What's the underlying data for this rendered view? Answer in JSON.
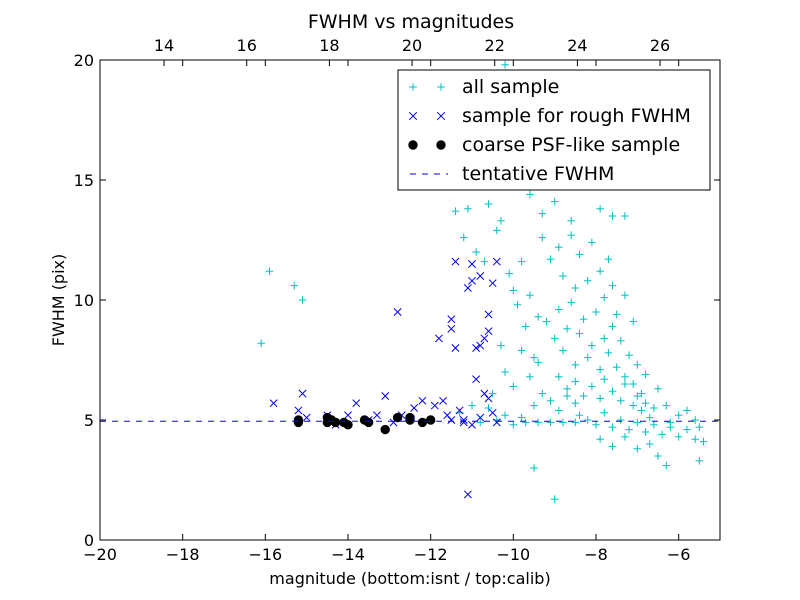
{
  "chart_data": {
    "type": "scatter",
    "title": "FWHM vs magnitudes",
    "xlabel": "magnitude (bottom:isnt / top:calib)",
    "ylabel": "FWHM (pix)",
    "xlim": [
      -20,
      -5
    ],
    "ylim": [
      0,
      20
    ],
    "x_ticks": [
      -20,
      -18,
      -16,
      -14,
      -12,
      -10,
      -8,
      -6
    ],
    "x_tick_labels": [
      "−20",
      "−18",
      "−16",
      "−14",
      "−12",
      "−10",
      "−8",
      "−6"
    ],
    "y_ticks": [
      0,
      5,
      10,
      15,
      20
    ],
    "y_tick_labels": [
      "0",
      "5",
      "10",
      "15",
      "20"
    ],
    "top_axis": {
      "xlim": [
        12.45,
        27.45
      ],
      "ticks": [
        14,
        16,
        18,
        20,
        22,
        24,
        26
      ],
      "tick_labels": [
        "14",
        "16",
        "18",
        "20",
        "22",
        "24",
        "26"
      ]
    },
    "grid": false,
    "legend_position": "top-right",
    "series": [
      {
        "name": "all sample",
        "marker": "plus",
        "color": "#00bfbf",
        "points": [
          [
            -16.1,
            8.2
          ],
          [
            -15.9,
            11.2
          ],
          [
            -15.3,
            10.6
          ],
          [
            -15.1,
            10.0
          ],
          [
            -11.4,
            13.7
          ],
          [
            -11.1,
            13.8
          ],
          [
            -11.2,
            12.6
          ],
          [
            -10.9,
            12.0
          ],
          [
            -10.7,
            11.6
          ],
          [
            -10.6,
            14.0
          ],
          [
            -10.4,
            12.9
          ],
          [
            -10.3,
            13.3
          ],
          [
            -11.3,
            5.3
          ],
          [
            -11.0,
            5.6
          ],
          [
            -10.8,
            4.9
          ],
          [
            -10.6,
            5.5
          ],
          [
            -10.4,
            5.0
          ],
          [
            -10.2,
            5.2
          ],
          [
            -10.0,
            4.8
          ],
          [
            -9.8,
            5.1
          ],
          [
            -10.1,
            11.1
          ],
          [
            -10.0,
            10.4
          ],
          [
            -9.9,
            9.8
          ],
          [
            -9.8,
            11.6
          ],
          [
            -9.7,
            8.9
          ],
          [
            -9.6,
            10.2
          ],
          [
            -9.5,
            7.6
          ],
          [
            -9.4,
            9.3
          ],
          [
            -10.2,
            19.8
          ],
          [
            -9.9,
            15.6
          ],
          [
            -9.6,
            14.4
          ],
          [
            -9.3,
            13.6
          ],
          [
            -9.0,
            14.1
          ],
          [
            -8.7,
            15.3
          ],
          [
            -8.4,
            16.5
          ],
          [
            -8.6,
            13.3
          ],
          [
            -8.3,
            14.8
          ],
          [
            -8.1,
            17.3
          ],
          [
            -7.9,
            13.8
          ],
          [
            -8.0,
            16.3
          ],
          [
            -7.6,
            13.5
          ],
          [
            -7.3,
            13.5
          ],
          [
            -9.3,
            12.6
          ],
          [
            -9.1,
            11.7
          ],
          [
            -8.9,
            12.2
          ],
          [
            -8.8,
            11.0
          ],
          [
            -8.6,
            12.7
          ],
          [
            -8.5,
            10.5
          ],
          [
            -8.4,
            11.9
          ],
          [
            -8.2,
            10.8
          ],
          [
            -8.1,
            12.4
          ],
          [
            -7.9,
            11.2
          ],
          [
            -7.8,
            10.1
          ],
          [
            -7.7,
            11.7
          ],
          [
            -7.6,
            10.6
          ],
          [
            -7.5,
            9.4
          ],
          [
            -7.3,
            10.2
          ],
          [
            -7.1,
            9.1
          ],
          [
            -9.2,
            9.1
          ],
          [
            -9.0,
            8.4
          ],
          [
            -8.9,
            9.6
          ],
          [
            -8.8,
            7.9
          ],
          [
            -8.7,
            8.8
          ],
          [
            -8.6,
            9.9
          ],
          [
            -8.5,
            7.3
          ],
          [
            -8.4,
            8.6
          ],
          [
            -8.3,
            9.2
          ],
          [
            -8.2,
            7.6
          ],
          [
            -8.1,
            8.1
          ],
          [
            -8.0,
            9.5
          ],
          [
            -7.9,
            7.1
          ],
          [
            -7.8,
            8.4
          ],
          [
            -7.7,
            7.8
          ],
          [
            -7.6,
            8.9
          ],
          [
            -7.5,
            7.2
          ],
          [
            -7.4,
            8.3
          ],
          [
            -7.3,
            6.8
          ],
          [
            -7.2,
            7.7
          ],
          [
            -7.1,
            6.5
          ],
          [
            -7.0,
            7.3
          ],
          [
            -6.9,
            6.1
          ],
          [
            -6.8,
            6.9
          ],
          [
            -8.9,
            6.8
          ],
          [
            -8.7,
            6.3
          ],
          [
            -8.5,
            6.6
          ],
          [
            -8.3,
            6.0
          ],
          [
            -8.1,
            6.4
          ],
          [
            -7.9,
            5.9
          ],
          [
            -7.8,
            6.7
          ],
          [
            -7.6,
            6.2
          ],
          [
            -7.4,
            5.8
          ],
          [
            -7.3,
            6.5
          ],
          [
            -7.1,
            5.6
          ],
          [
            -7.0,
            6.0
          ],
          [
            -6.9,
            5.4
          ],
          [
            -6.8,
            5.7
          ],
          [
            -6.7,
            5.1
          ],
          [
            -6.6,
            5.5
          ],
          [
            -8.4,
            5.2
          ],
          [
            -8.2,
            5.0
          ],
          [
            -8.0,
            4.8
          ],
          [
            -7.8,
            5.3
          ],
          [
            -7.6,
            4.7
          ],
          [
            -7.4,
            5.0
          ],
          [
            -7.2,
            4.6
          ],
          [
            -7.0,
            4.9
          ],
          [
            -6.8,
            4.5
          ],
          [
            -6.6,
            4.8
          ],
          [
            -6.4,
            4.4
          ],
          [
            -6.2,
            4.7
          ],
          [
            -6.0,
            4.3
          ],
          [
            -5.8,
            4.6
          ],
          [
            -5.6,
            4.2
          ],
          [
            -5.4,
            4.1
          ],
          [
            -7.9,
            4.2
          ],
          [
            -7.6,
            3.9
          ],
          [
            -7.3,
            4.3
          ],
          [
            -7.0,
            3.8
          ],
          [
            -6.7,
            4.0
          ],
          [
            -6.5,
            3.5
          ],
          [
            -6.5,
            6.3
          ],
          [
            -6.3,
            5.6
          ],
          [
            -6.2,
            4.9
          ],
          [
            -6.0,
            5.2
          ],
          [
            -5.8,
            5.4
          ],
          [
            -5.6,
            5.0
          ],
          [
            -5.5,
            4.7
          ],
          [
            -9.5,
            5.6
          ],
          [
            -9.3,
            6.1
          ],
          [
            -9.1,
            5.8
          ],
          [
            -8.9,
            5.4
          ],
          [
            -8.7,
            6.0
          ],
          [
            -8.5,
            5.7
          ],
          [
            -9.8,
            7.9
          ],
          [
            -9.6,
            6.8
          ],
          [
            -9.4,
            7.4
          ],
          [
            -10.2,
            7.0
          ],
          [
            -10.0,
            6.4
          ],
          [
            -10.5,
            6.1
          ],
          [
            -10.3,
            8.1
          ],
          [
            -9.7,
            4.9
          ],
          [
            -9.4,
            4.9
          ],
          [
            -9.1,
            4.9
          ],
          [
            -8.8,
            4.9
          ],
          [
            -8.5,
            4.9
          ],
          [
            -9.5,
            3.0
          ],
          [
            -9.0,
            1.7
          ],
          [
            -6.3,
            3.1
          ],
          [
            -5.5,
            3.3
          ]
        ]
      },
      {
        "name": "sample for rough FWHM",
        "marker": "x",
        "color": "#0000ff",
        "points": [
          [
            -15.8,
            5.7
          ],
          [
            -15.2,
            5.4
          ],
          [
            -15.1,
            6.1
          ],
          [
            -15.0,
            5.1
          ],
          [
            -14.5,
            5.2
          ],
          [
            -14.3,
            4.8
          ],
          [
            -14.0,
            5.2
          ],
          [
            -13.8,
            5.7
          ],
          [
            -13.5,
            5.0
          ],
          [
            -13.3,
            5.2
          ],
          [
            -13.1,
            6.0
          ],
          [
            -12.9,
            4.9
          ],
          [
            -12.8,
            9.5
          ],
          [
            -12.7,
            5.2
          ],
          [
            -12.4,
            5.5
          ],
          [
            -12.2,
            5.8
          ],
          [
            -11.9,
            5.6
          ],
          [
            -11.8,
            8.4
          ],
          [
            -11.7,
            5.8
          ],
          [
            -11.6,
            5.2
          ],
          [
            -11.5,
            9.2
          ],
          [
            -11.5,
            8.8
          ],
          [
            -11.4,
            8.0
          ],
          [
            -11.4,
            11.6
          ],
          [
            -11.3,
            5.4
          ],
          [
            -11.2,
            5.0
          ],
          [
            -11.1,
            10.5
          ],
          [
            -11.0,
            10.8
          ],
          [
            -11.0,
            11.5
          ],
          [
            -10.9,
            6.7
          ],
          [
            -10.9,
            8.0
          ],
          [
            -10.8,
            8.1
          ],
          [
            -10.8,
            11.0
          ],
          [
            -10.7,
            6.1
          ],
          [
            -10.7,
            8.4
          ],
          [
            -10.6,
            9.4
          ],
          [
            -10.6,
            8.7
          ],
          [
            -10.6,
            5.9
          ],
          [
            -10.5,
            10.7
          ],
          [
            -10.5,
            5.3
          ],
          [
            -10.4,
            11.6
          ],
          [
            -10.4,
            4.9
          ],
          [
            -10.8,
            5.1
          ],
          [
            -11.0,
            4.8
          ],
          [
            -11.2,
            4.9
          ],
          [
            -11.5,
            5.0
          ],
          [
            -11.1,
            1.9
          ]
        ]
      },
      {
        "name": "coarse PSF-like sample",
        "marker": "circle",
        "color": "#000000",
        "points": [
          [
            -15.2,
            4.9
          ],
          [
            -15.2,
            5.0
          ],
          [
            -14.5,
            4.9
          ],
          [
            -14.5,
            5.1
          ],
          [
            -14.4,
            5.0
          ],
          [
            -14.3,
            4.9
          ],
          [
            -14.1,
            4.9
          ],
          [
            -14.0,
            4.8
          ],
          [
            -13.6,
            5.0
          ],
          [
            -13.5,
            4.9
          ],
          [
            -13.1,
            4.6
          ],
          [
            -12.8,
            5.1
          ],
          [
            -12.5,
            5.0
          ],
          [
            -12.5,
            5.1
          ],
          [
            -12.2,
            4.9
          ],
          [
            -12.0,
            5.0
          ]
        ]
      },
      {
        "name": "tentative FWHM",
        "marker": "dashed-line",
        "color": "#0000ff",
        "value": 4.95
      }
    ]
  }
}
